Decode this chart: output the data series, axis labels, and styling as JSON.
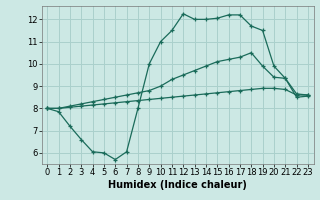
{
  "bg_color": "#cce8e4",
  "grid_color": "#aad0cc",
  "line_color": "#1a6b5a",
  "xlabel": "Humidex (Indice chaleur)",
  "xlabel_fontsize": 7,
  "tick_fontsize": 6,
  "ylim": [
    5.5,
    12.6
  ],
  "xlim": [
    -0.5,
    23.5
  ],
  "yticks": [
    6,
    7,
    8,
    9,
    10,
    11,
    12
  ],
  "xticks": [
    0,
    1,
    2,
    3,
    4,
    5,
    6,
    7,
    8,
    9,
    10,
    11,
    12,
    13,
    14,
    15,
    16,
    17,
    18,
    19,
    20,
    21,
    22,
    23
  ],
  "line_straight_x": [
    0,
    1,
    2,
    3,
    4,
    5,
    6,
    7,
    8,
    9,
    10,
    11,
    12,
    13,
    14,
    15,
    16,
    17,
    18,
    19,
    20,
    21,
    22,
    23
  ],
  "line_straight_y": [
    8.0,
    8.0,
    8.05,
    8.1,
    8.15,
    8.2,
    8.25,
    8.3,
    8.35,
    8.4,
    8.45,
    8.5,
    8.55,
    8.6,
    8.65,
    8.7,
    8.75,
    8.8,
    8.85,
    8.9,
    8.9,
    8.85,
    8.6,
    8.6
  ],
  "line_mid_x": [
    0,
    1,
    2,
    3,
    4,
    5,
    6,
    7,
    8,
    9,
    10,
    11,
    12,
    13,
    14,
    15,
    16,
    17,
    18,
    19,
    20,
    21,
    22,
    23
  ],
  "line_mid_y": [
    8.0,
    8.0,
    8.1,
    8.2,
    8.3,
    8.4,
    8.5,
    8.6,
    8.7,
    8.8,
    9.0,
    9.3,
    9.5,
    9.7,
    9.9,
    10.1,
    10.2,
    10.3,
    10.5,
    9.9,
    9.4,
    9.35,
    8.65,
    8.6
  ],
  "line_peak_x": [
    0,
    1,
    2,
    3,
    4,
    5,
    6,
    7,
    8,
    9,
    10,
    11,
    12,
    13,
    14,
    15,
    16,
    17,
    18,
    19,
    20,
    21,
    22,
    23
  ],
  "line_peak_y": [
    8.0,
    7.85,
    7.2,
    6.6,
    6.05,
    6.0,
    5.7,
    6.05,
    8.0,
    10.0,
    11.0,
    11.5,
    12.25,
    12.0,
    12.0,
    12.05,
    12.2,
    12.2,
    11.7,
    11.5,
    9.9,
    9.35,
    8.5,
    8.55
  ]
}
